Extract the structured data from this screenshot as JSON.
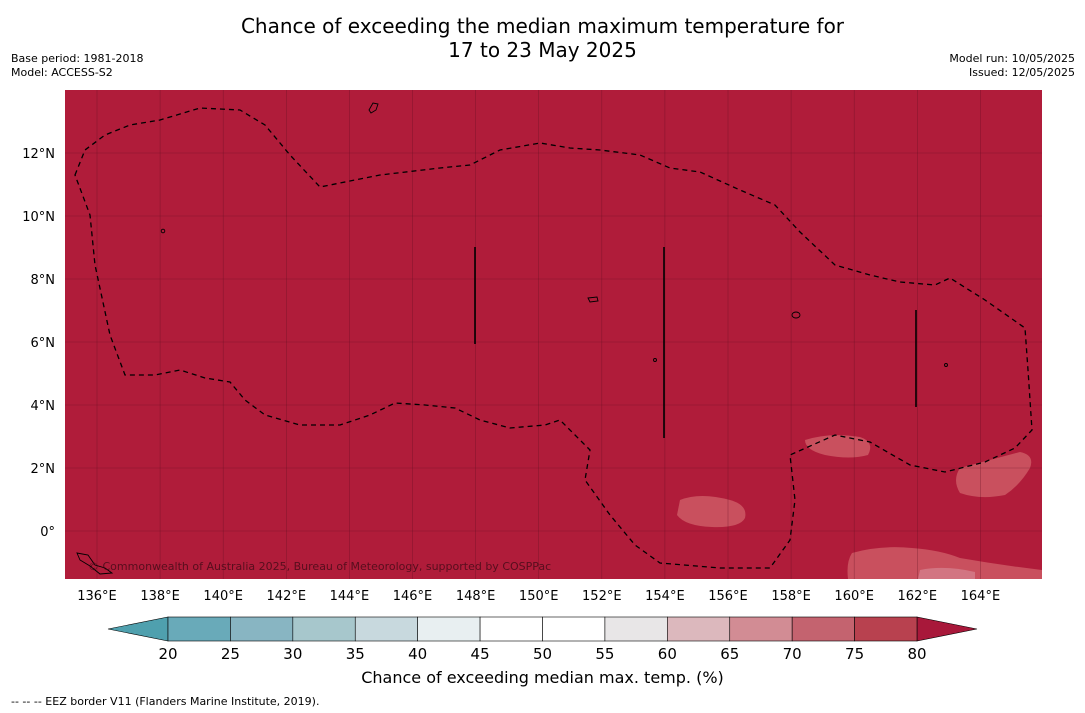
{
  "header": {
    "title_line1": "Chance of exceeding the median maximum temperature for",
    "title_line2": "17 to 23 May 2025",
    "base_period": "Base period: 1981-2018",
    "model": "Model: ACCESS-S2",
    "model_run": "Model run: 10/05/2025",
    "issued": "Issued: 12/05/2025"
  },
  "map": {
    "lon_ticks": [
      "136°E",
      "138°E",
      "140°E",
      "142°E",
      "144°E",
      "146°E",
      "148°E",
      "150°E",
      "152°E",
      "154°E",
      "156°E",
      "158°E",
      "160°E",
      "162°E",
      "164°E"
    ],
    "lat_ticks": [
      "12°N",
      "10°N",
      "8°N",
      "6°N",
      "4°N",
      "2°N",
      "0°"
    ],
    "copyright": "© Commonwealth of Australia 2025, Bureau of Meteorology, supported by COSPPac",
    "background_color": "#b01c3a"
  },
  "colorbar": {
    "ticks": [
      "20",
      "25",
      "30",
      "35",
      "40",
      "45",
      "50",
      "55",
      "60",
      "65",
      "70",
      "75",
      "80"
    ],
    "colors": [
      "#69aab9",
      "#88b5c2",
      "#a7c7cc",
      "#c8d9de",
      "#e8eff1",
      "#ffffff",
      "#ffffff",
      "#e8e6e7",
      "#dcb8bd",
      "#d28c94",
      "#c4636f",
      "#b8414f"
    ],
    "under_color": "#4fa0ae",
    "over_color": "#a8183a",
    "label": "Chance of exceeding median max. temp. (%)"
  },
  "footnote": "--  --  -- EEZ border V11 (Flanders Marine Institute, 2019)."
}
